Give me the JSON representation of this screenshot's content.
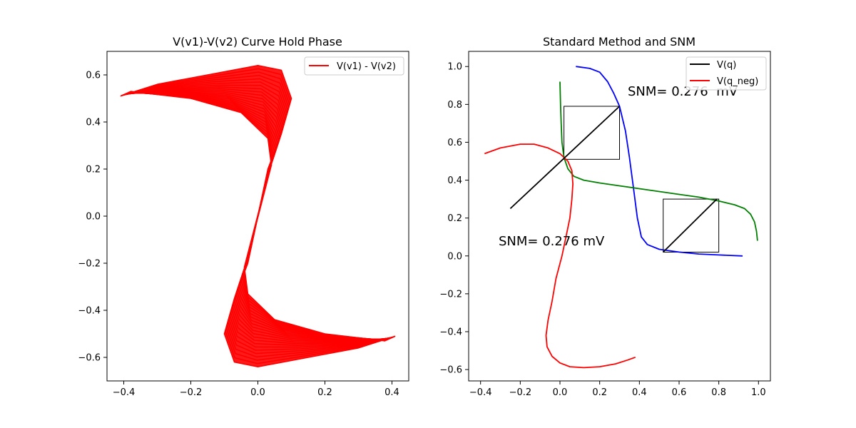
{
  "chart_data": [
    {
      "type": "line",
      "title": "V(v1)-V(v2) Curve Hold Phase",
      "xlabel": "",
      "ylabel": "",
      "xlim": [
        -0.45,
        0.45
      ],
      "ylim": [
        -0.7,
        0.7
      ],
      "xticks": [
        -0.4,
        -0.2,
        0.0,
        0.2,
        0.4
      ],
      "xtick_labels": [
        "−0.4",
        "−0.2",
        "0.0",
        "0.2",
        "0.4"
      ],
      "yticks": [
        -0.6,
        -0.4,
        -0.2,
        0.0,
        0.2,
        0.4,
        0.6
      ],
      "ytick_labels": [
        "−0.6",
        "−0.4",
        "−0.2",
        "0.0",
        "0.2",
        "0.4",
        "0.6"
      ],
      "grid": false,
      "legend": "top-right",
      "series": [
        {
          "name": "V(v1) - V(v2)",
          "color": "#ff0000",
          "description_points": {
            "upper_outer": [
              [
                -0.41,
                0.51
              ],
              [
                -0.3,
                0.56
              ],
              [
                -0.15,
                0.6
              ],
              [
                0.0,
                0.64
              ],
              [
                0.07,
                0.62
              ],
              [
                0.1,
                0.5
              ],
              [
                0.07,
                0.35
              ],
              [
                0.03,
                0.2
              ]
            ],
            "upper_inner": [
              [
                -0.38,
                0.53
              ],
              [
                -0.2,
                0.5
              ],
              [
                -0.05,
                0.44
              ],
              [
                0.03,
                0.33
              ],
              [
                0.04,
                0.22
              ]
            ],
            "lower_outer": [
              [
                0.41,
                -0.51
              ],
              [
                0.3,
                -0.56
              ],
              [
                0.15,
                -0.6
              ],
              [
                0.0,
                -0.64
              ],
              [
                -0.07,
                -0.62
              ],
              [
                -0.1,
                -0.5
              ],
              [
                -0.07,
                -0.35
              ],
              [
                -0.03,
                -0.2
              ]
            ],
            "lower_inner": [
              [
                0.38,
                -0.53
              ],
              [
                0.2,
                -0.5
              ],
              [
                0.05,
                -0.44
              ],
              [
                -0.03,
                -0.33
              ],
              [
                -0.04,
                -0.22
              ]
            ]
          }
        }
      ]
    },
    {
      "type": "line",
      "title": "Standard Method and SNM",
      "xlabel": "",
      "ylabel": "",
      "xlim": [
        -0.46,
        1.06
      ],
      "ylim": [
        -0.66,
        1.08
      ],
      "xticks": [
        -0.4,
        -0.2,
        0.0,
        0.2,
        0.4,
        0.6,
        0.8,
        1.0
      ],
      "xtick_labels": [
        "−0.4",
        "−0.2",
        "0.0",
        "0.2",
        "0.4",
        "0.6",
        "0.8",
        "1.0"
      ],
      "yticks": [
        -0.6,
        -0.4,
        -0.2,
        0.0,
        0.2,
        0.4,
        0.6,
        0.8,
        1.0
      ],
      "ytick_labels": [
        "−0.6",
        "−0.4",
        "−0.2",
        "0.0",
        "0.2",
        "0.4",
        "0.6",
        "0.8",
        "1.0"
      ],
      "grid": false,
      "legend": "top-right",
      "legend_entries": [
        {
          "name": "V(q)",
          "color": "#000000"
        },
        {
          "name": "V(q_neg)",
          "color": "#ff0000"
        }
      ],
      "annotations": [
        {
          "text": "SNM= 0.276  mV",
          "x": 0.35,
          "y": 0.83
        },
        {
          "text": "SNM= 0.276 mV",
          "x": -0.3,
          "y": 0.05
        }
      ],
      "series": [
        {
          "name": "blue",
          "color": "#0000ff",
          "points": [
            [
              0.08,
              1.0
            ],
            [
              0.15,
              0.99
            ],
            [
              0.2,
              0.97
            ],
            [
              0.24,
              0.92
            ],
            [
              0.27,
              0.86
            ],
            [
              0.3,
              0.79
            ],
            [
              0.33,
              0.66
            ],
            [
              0.35,
              0.52
            ],
            [
              0.37,
              0.36
            ],
            [
              0.39,
              0.2
            ],
            [
              0.41,
              0.1
            ],
            [
              0.44,
              0.06
            ],
            [
              0.5,
              0.035
            ],
            [
              0.6,
              0.02
            ],
            [
              0.7,
              0.01
            ],
            [
              0.8,
              0.005
            ],
            [
              0.92,
              0.0
            ]
          ]
        },
        {
          "name": "green",
          "color": "#008000",
          "points": [
            [
              0.0,
              0.92
            ],
            [
              0.003,
              0.8
            ],
            [
              0.006,
              0.7
            ],
            [
              0.01,
              0.6
            ],
            [
              0.02,
              0.52
            ],
            [
              0.04,
              0.46
            ],
            [
              0.07,
              0.42
            ],
            [
              0.12,
              0.4
            ],
            [
              0.2,
              0.385
            ],
            [
              0.3,
              0.37
            ],
            [
              0.4,
              0.355
            ],
            [
              0.5,
              0.34
            ],
            [
              0.6,
              0.325
            ],
            [
              0.7,
              0.31
            ],
            [
              0.8,
              0.29
            ],
            [
              0.88,
              0.27
            ],
            [
              0.93,
              0.25
            ],
            [
              0.96,
              0.22
            ],
            [
              0.98,
              0.18
            ],
            [
              0.99,
              0.13
            ],
            [
              0.995,
              0.08
            ]
          ]
        },
        {
          "name": "red",
          "color": "#ff0000",
          "points": [
            [
              -0.38,
              0.54
            ],
            [
              -0.3,
              0.57
            ],
            [
              -0.2,
              0.59
            ],
            [
              -0.13,
              0.59
            ],
            [
              -0.06,
              0.57
            ],
            [
              0.0,
              0.54
            ],
            [
              0.04,
              0.5
            ],
            [
              0.06,
              0.45
            ],
            [
              0.065,
              0.38
            ],
            [
              0.06,
              0.3
            ],
            [
              0.05,
              0.2
            ],
            [
              0.03,
              0.1
            ],
            [
              0.01,
              0.0
            ],
            [
              -0.02,
              -0.12
            ],
            [
              -0.04,
              -0.24
            ],
            [
              -0.06,
              -0.34
            ],
            [
              -0.07,
              -0.42
            ],
            [
              -0.065,
              -0.48
            ],
            [
              -0.04,
              -0.53
            ],
            [
              0.0,
              -0.565
            ],
            [
              0.05,
              -0.585
            ],
            [
              0.12,
              -0.59
            ],
            [
              0.2,
              -0.585
            ],
            [
              0.28,
              -0.57
            ],
            [
              0.34,
              -0.55
            ],
            [
              0.38,
              -0.535
            ]
          ]
        },
        {
          "name": "black",
          "color": "#000000",
          "points": [
            [
              -0.25,
              0.25
            ],
            [
              0.3,
              0.79
            ]
          ]
        },
        {
          "name": "black-diag-2",
          "color": "#000000",
          "points": [
            [
              0.52,
              0.02
            ],
            [
              0.79,
              0.3
            ]
          ]
        }
      ],
      "boxes": [
        {
          "x0": 0.02,
          "y0": 0.51,
          "x1": 0.3,
          "y1": 0.79
        },
        {
          "x0": 0.52,
          "y0": 0.02,
          "x1": 0.8,
          "y1": 0.3
        }
      ]
    }
  ]
}
